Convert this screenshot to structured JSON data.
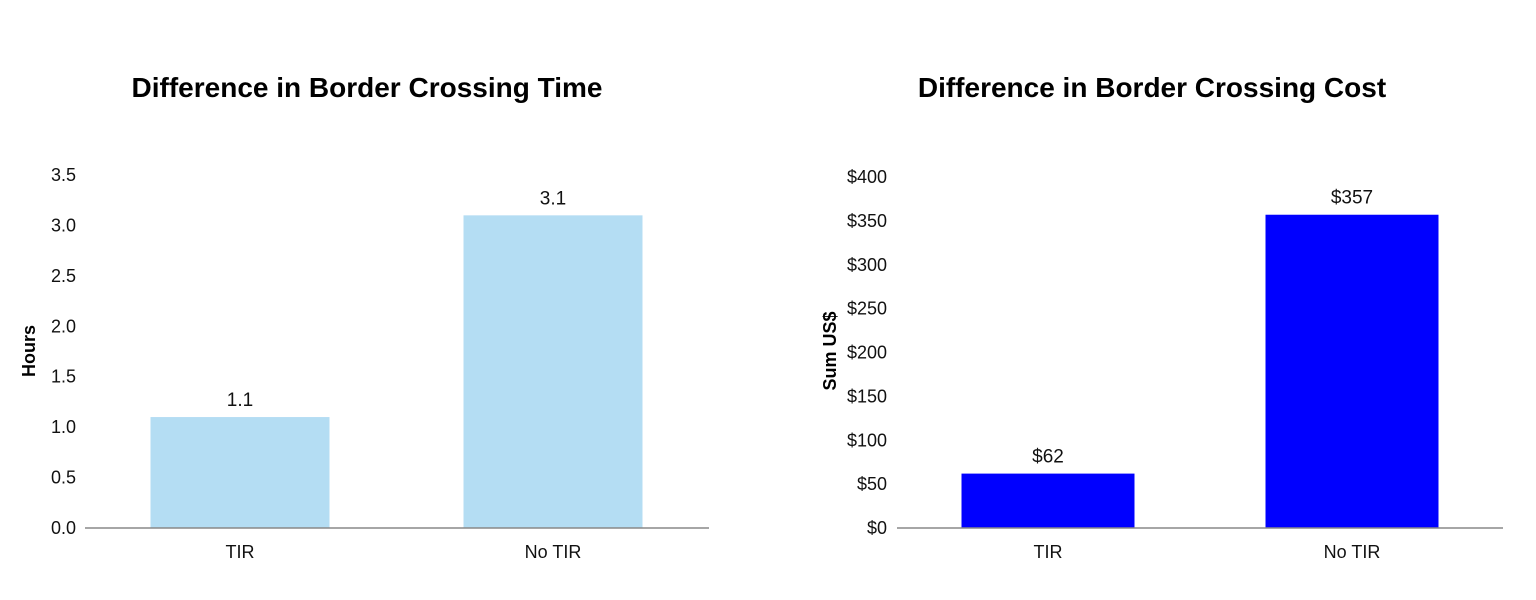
{
  "chart_data": [
    {
      "type": "bar",
      "title": "Difference in Border Crossing Time",
      "xlabel": "",
      "ylabel": "Hours",
      "categories": [
        "TIR",
        "No TIR"
      ],
      "values": [
        1.1,
        3.1
      ],
      "data_labels": [
        "1.1",
        "3.1"
      ],
      "yticks": [
        "0.0",
        "0.5",
        "1.0",
        "1.5",
        "2.0",
        "2.5",
        "3.0",
        "3.5"
      ],
      "ylim": [
        0,
        3.5
      ],
      "grid": false,
      "bar_color": "#b4ddf3"
    },
    {
      "type": "bar",
      "title": "Difference in Border Crossing Cost",
      "xlabel": "",
      "ylabel": "Sum US$",
      "categories": [
        "TIR",
        "No TIR"
      ],
      "values": [
        62,
        357
      ],
      "data_labels": [
        "$62",
        "$357"
      ],
      "yticks": [
        "$0",
        "$50",
        "$100",
        "$150",
        "$200",
        "$250",
        "$300",
        "$350",
        "$400"
      ],
      "ylim": [
        0,
        400
      ],
      "grid": false,
      "bar_color": "#0000ff"
    }
  ]
}
